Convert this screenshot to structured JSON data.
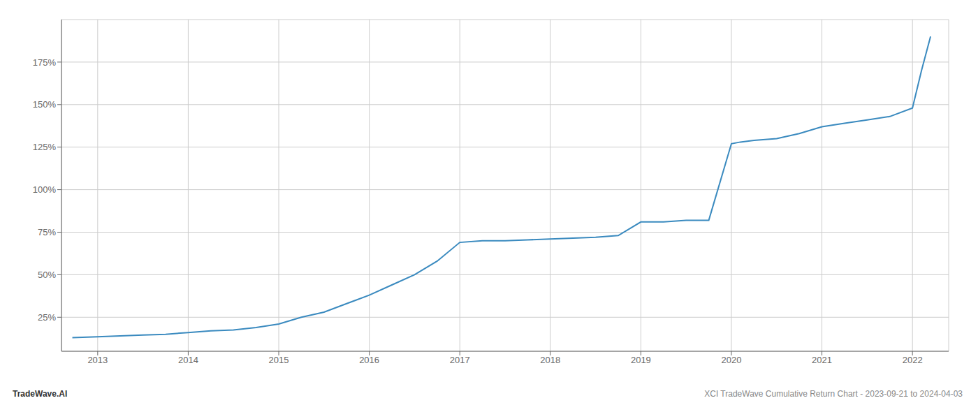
{
  "chart_data": {
    "type": "line",
    "x": [
      2012.72,
      2013.0,
      2013.25,
      2013.5,
      2013.75,
      2014.0,
      2014.25,
      2014.5,
      2014.75,
      2015.0,
      2015.25,
      2015.5,
      2015.75,
      2016.0,
      2016.25,
      2016.5,
      2016.75,
      2017.0,
      2017.25,
      2017.5,
      2017.75,
      2018.0,
      2018.25,
      2018.5,
      2018.75,
      2019.0,
      2019.25,
      2019.5,
      2019.75,
      2020.0,
      2020.1,
      2020.25,
      2020.5,
      2020.75,
      2021.0,
      2021.25,
      2021.5,
      2021.75,
      2022.0,
      2022.1,
      2022.2
    ],
    "values": [
      13,
      13.5,
      14,
      14.5,
      15,
      16,
      17,
      17.5,
      19,
      21,
      25,
      28,
      33,
      38,
      44,
      50,
      58,
      69,
      70,
      70,
      70.5,
      71,
      71.5,
      72,
      73,
      81,
      81,
      82,
      82,
      127,
      128,
      129,
      130,
      133,
      137,
      139,
      141,
      143,
      148,
      170,
      190
    ],
    "color": "#3a8abf",
    "xlim": [
      2012.6,
      2022.4
    ],
    "xticks": [
      2013,
      2014,
      2015,
      2016,
      2017,
      2018,
      2019,
      2020,
      2021,
      2022
    ],
    "ylim": [
      5,
      200
    ],
    "yticks": [
      {
        "value": 25,
        "label": "25%"
      },
      {
        "value": 50,
        "label": "50%"
      },
      {
        "value": 75,
        "label": "75%"
      },
      {
        "value": 100,
        "label": "100%"
      },
      {
        "value": 125,
        "label": "125%"
      },
      {
        "value": 150,
        "label": "150%"
      },
      {
        "value": 175,
        "label": "175%"
      }
    ],
    "grid": true,
    "annotations": [
      "TradeWave.AI",
      "XCI TradeWave Cumulative Return Chart - 2023-09-21 to 2024-04-03"
    ]
  }
}
